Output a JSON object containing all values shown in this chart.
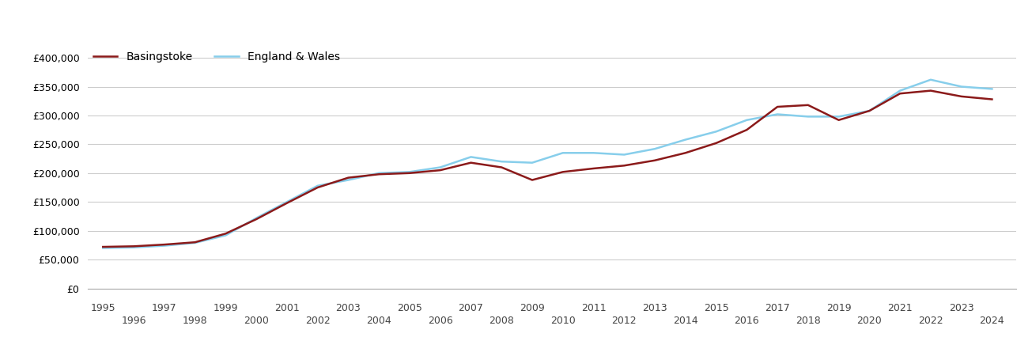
{
  "basingstoke_years": [
    1995,
    1996,
    1997,
    1998,
    1999,
    2000,
    2001,
    2002,
    2003,
    2004,
    2005,
    2006,
    2007,
    2008,
    2009,
    2010,
    2011,
    2012,
    2013,
    2014,
    2015,
    2016,
    2017,
    2018,
    2019,
    2020,
    2021,
    2022,
    2023,
    2024
  ],
  "basingstoke_prices": [
    72000,
    73000,
    76000,
    80000,
    95000,
    120000,
    148000,
    175000,
    192000,
    198000,
    200000,
    205000,
    218000,
    210000,
    188000,
    202000,
    208000,
    213000,
    222000,
    235000,
    252000,
    275000,
    315000,
    318000,
    292000,
    308000,
    338000,
    343000,
    333000,
    328000
  ],
  "england_years": [
    1995,
    1996,
    1997,
    1998,
    1999,
    2000,
    2001,
    2002,
    2003,
    2004,
    2005,
    2006,
    2007,
    2008,
    2009,
    2010,
    2011,
    2012,
    2013,
    2014,
    2015,
    2016,
    2017,
    2018,
    2019,
    2020,
    2021,
    2022,
    2023,
    2024
  ],
  "england_prices": [
    70000,
    71000,
    74000,
    79000,
    92000,
    122000,
    150000,
    178000,
    188000,
    200000,
    202000,
    210000,
    228000,
    220000,
    218000,
    235000,
    235000,
    232000,
    242000,
    258000,
    272000,
    292000,
    302000,
    298000,
    298000,
    308000,
    343000,
    362000,
    350000,
    346000
  ],
  "basingstoke_color": "#8B1A1A",
  "england_color": "#87CEEB",
  "basingstoke_label": "Basingstoke",
  "england_label": "England & Wales",
  "ylim": [
    0,
    420000
  ],
  "yticks": [
    0,
    50000,
    100000,
    150000,
    200000,
    250000,
    300000,
    350000,
    400000
  ],
  "xlim_min": 1994.5,
  "xlim_max": 2024.8,
  "xticks_top": [
    1995,
    1997,
    1999,
    2001,
    2003,
    2005,
    2007,
    2009,
    2011,
    2013,
    2015,
    2017,
    2019,
    2021,
    2023
  ],
  "xticks_bottom": [
    1996,
    1998,
    2000,
    2002,
    2004,
    2006,
    2008,
    2010,
    2012,
    2014,
    2016,
    2018,
    2020,
    2022,
    2024
  ],
  "background_color": "#ffffff",
  "grid_color": "#cccccc",
  "line_width": 1.8
}
